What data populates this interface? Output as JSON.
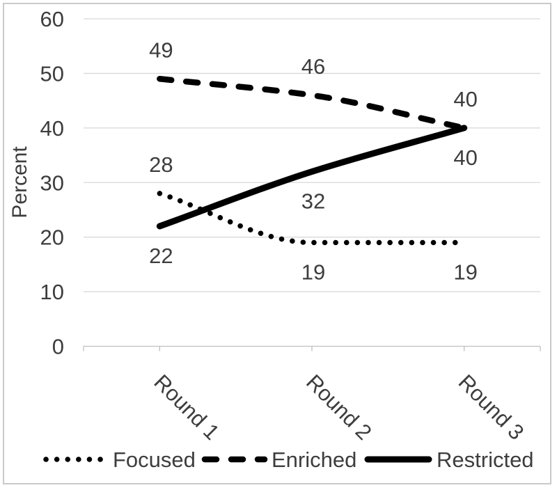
{
  "chart_data": {
    "type": "line",
    "title": "",
    "ylabel": "Percent",
    "xlabel": "",
    "categories": [
      "Round 1",
      "Round 2",
      "Round 3"
    ],
    "series": [
      {
        "name": "Focused",
        "line_style": "dotted",
        "values": [
          28,
          19,
          19
        ],
        "label_positions": [
          "above",
          "below",
          "below"
        ]
      },
      {
        "name": "Enriched",
        "line_style": "dashed",
        "values": [
          49,
          46,
          40
        ],
        "label_positions": [
          "above",
          "above",
          "above"
        ]
      },
      {
        "name": "Restricted",
        "line_style": "solid",
        "values": [
          22,
          32,
          40
        ],
        "label_positions": [
          "below",
          "below",
          "below"
        ]
      }
    ],
    "ylim": [
      0,
      60
    ],
    "yticks": [
      0,
      10,
      20,
      30,
      40,
      50,
      60
    ],
    "grid": true,
    "smooth_lines": true,
    "legend_position": "bottom"
  },
  "colors": {
    "series_line": "#000000",
    "text": "#3d3d3d",
    "gridline": "#d9d9d9",
    "axis_line": "#bfbfbf",
    "frame_border": "#c9c9c9",
    "background": "#ffffff"
  }
}
